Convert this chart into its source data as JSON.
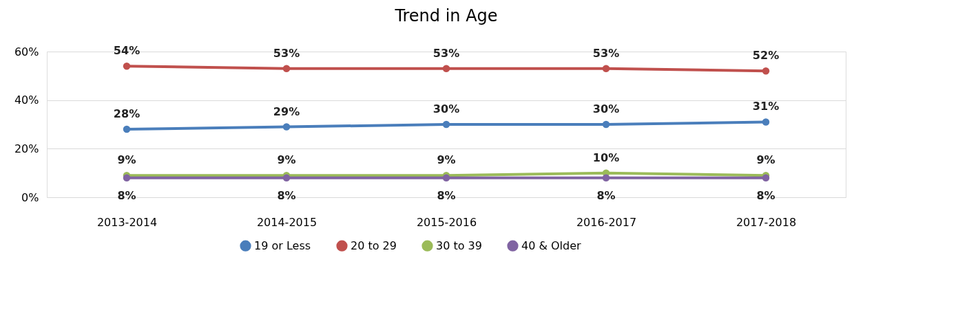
{
  "chart_data": {
    "type": "line",
    "title": "Trend in Age",
    "categories": [
      "2013-2014",
      "2014-2015",
      "2015-2016",
      "2016-2017",
      "2017-2018"
    ],
    "series": [
      {
        "name": "19 or Less",
        "color": "#4a7ebb",
        "values": [
          28,
          29,
          30,
          30,
          31
        ],
        "value_labels": [
          "28%",
          "29%",
          "30%",
          "30%",
          "31%"
        ]
      },
      {
        "name": "20 to 29",
        "color": "#c0504d",
        "values": [
          54,
          53,
          53,
          53,
          52
        ],
        "value_labels": [
          "54%",
          "53%",
          "53%",
          "53%",
          "52%"
        ]
      },
      {
        "name": "30 to 39",
        "color": "#9bbb59",
        "values": [
          9,
          9,
          9,
          10,
          9
        ],
        "value_labels": [
          "9%",
          "9%",
          "9%",
          "10%",
          "9%"
        ]
      },
      {
        "name": "40 & Older",
        "color": "#8064a2",
        "values": [
          8,
          8,
          8,
          8,
          8
        ],
        "value_labels": [
          "8%",
          "8%",
          "8%",
          "8%",
          "8%"
        ]
      }
    ],
    "ylim": [
      0,
      60
    ],
    "yticks": [
      {
        "value": 0,
        "label": "0%"
      },
      {
        "value": 20,
        "label": "20%"
      },
      {
        "value": 40,
        "label": "40%"
      },
      {
        "value": 60,
        "label": "60%"
      }
    ],
    "grid": "y",
    "legend": "bottom",
    "marker": "circle",
    "line_style": "solid"
  }
}
